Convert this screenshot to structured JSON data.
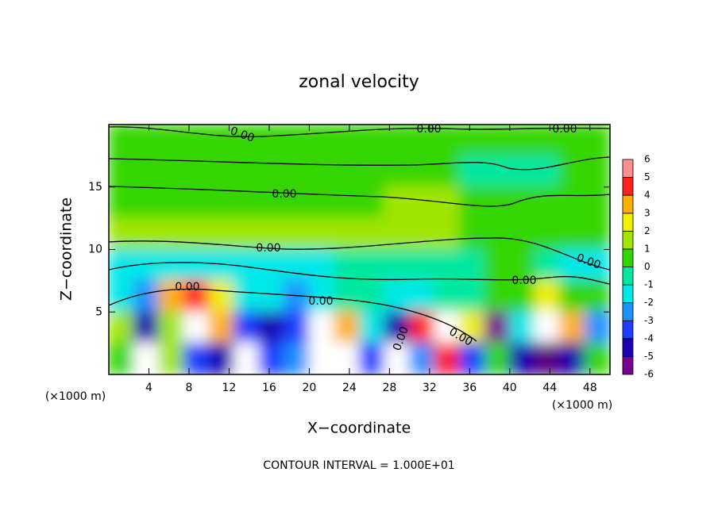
{
  "chart_data": {
    "type": "heatmap",
    "title": "zonal velocity",
    "x_label": "X−coordinate",
    "y_label": "Z−coordinate",
    "x_units": [
      "(×1000 m)",
      "(×1000 m)"
    ],
    "footer": "CONTOUR INTERVAL = 1.000E+01",
    "xlim": [
      0,
      50
    ],
    "ylim": [
      0,
      20
    ],
    "xticks": [
      4,
      8,
      12,
      16,
      20,
      24,
      28,
      32,
      36,
      40,
      44,
      48
    ],
    "yticks": [
      5,
      10,
      15
    ],
    "x": [
      1.25,
      3.75,
      6.25,
      8.75,
      11.25,
      13.75,
      16.25,
      18.75,
      21.25,
      23.75,
      26.25,
      28.75,
      31.25,
      33.75,
      36.25,
      38.75,
      41.25,
      43.75,
      46.25,
      48.75
    ],
    "y": [
      18.75,
      16.25,
      13.75,
      11.25,
      8.75,
      6.25,
      3.75,
      1.25
    ],
    "z": [
      [
        0.5,
        0.5,
        0.5,
        0.5,
        0.5,
        0.5,
        0.5,
        0.5,
        0.5,
        0.5,
        0.5,
        0.5,
        0.5,
        0.5,
        0.5,
        0.5,
        0.5,
        0.5,
        0.5,
        0.5
      ],
      [
        0.5,
        0.5,
        0.5,
        0.5,
        0.5,
        0.5,
        0.5,
        0.5,
        0.5,
        0.5,
        0.5,
        0.5,
        0.5,
        0.5,
        -0.5,
        -0.5,
        -0.5,
        -0.5,
        0.5,
        0.5
      ],
      [
        0.8,
        0.8,
        0.8,
        0.8,
        0.8,
        0.8,
        0.8,
        0.8,
        0.8,
        0.8,
        0.8,
        1.2,
        1.2,
        1.2,
        0.8,
        0.8,
        0.5,
        0.5,
        0.5,
        0.5
      ],
      [
        1.2,
        1.2,
        1.2,
        1.2,
        1.2,
        1.2,
        1.2,
        1.2,
        1.2,
        1.2,
        1.2,
        1.2,
        1.2,
        1.2,
        0.8,
        0.8,
        0.5,
        0.5,
        0.5,
        0.5
      ],
      [
        -1.5,
        -1.5,
        -1.5,
        -1.2,
        -1.2,
        -1.2,
        -1,
        -1,
        -1,
        -0.8,
        -0.8,
        -0.5,
        -0.5,
        -0.5,
        -0.5,
        0.3,
        0.3,
        -0.5,
        -1,
        -1
      ],
      [
        -1.5,
        -2.5,
        3.5,
        4.5,
        3,
        -1,
        -1.5,
        -2.5,
        -1,
        -0.8,
        -0.8,
        -1.5,
        -1,
        -0.5,
        -0.5,
        0.3,
        0.3,
        2.5,
        1,
        0.5
      ],
      [
        2,
        -4.5,
        2,
        7,
        4,
        -3,
        -4,
        -3,
        7,
        4,
        -1,
        -4.5,
        5,
        7,
        3,
        -5,
        -1,
        7,
        4,
        -2
      ],
      [
        0.5,
        7,
        1.5,
        -3,
        -4,
        7,
        -3,
        -2,
        7,
        7,
        -3,
        7,
        -2,
        5,
        -3,
        0.5,
        -4,
        -6.5,
        -4,
        0.5
      ]
    ],
    "colorbar": {
      "ticks": [
        -6,
        -5,
        -4,
        -3,
        -2,
        -1,
        0,
        1,
        2,
        3,
        4,
        5,
        6
      ],
      "colors": [
        "#7a0090",
        "#1a00b0",
        "#1f3cff",
        "#1e90ff",
        "#00e8e8",
        "#00e8a0",
        "#34d600",
        "#a0e600",
        "#f0f000",
        "#ffb000",
        "#ff2020",
        "#ff9090"
      ],
      "over_color": "#ffffff",
      "under_color": "#5a007a"
    },
    "contour_labels": [
      "0.00",
      "0.00",
      "0.00",
      "0.00",
      "0.00",
      "0.00",
      "0.00",
      "0.00",
      "0.00",
      "0.00",
      "0.00"
    ]
  }
}
